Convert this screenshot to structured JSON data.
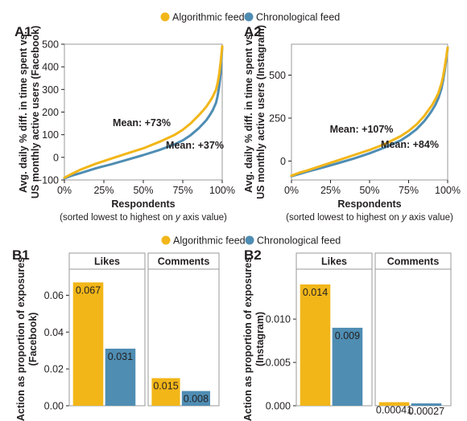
{
  "colors": {
    "algorithmic": "#f2b619",
    "chronological": "#4f8db3",
    "axis": "#231f20",
    "grid": "#9a9a9a"
  },
  "legend_top": {
    "items": [
      {
        "label": "Algorithmic feed",
        "color": "#f2b619"
      },
      {
        "label": "Chronological feed",
        "color": "#4f8db3"
      }
    ]
  },
  "legend_bottom": {
    "items": [
      {
        "label": "Algorithmic feed",
        "color": "#f2b619"
      },
      {
        "label": "Chronological feed",
        "color": "#4f8db3"
      }
    ]
  },
  "chart_data": [
    {
      "id": "A1",
      "panel_label": "A1",
      "type": "line",
      "ylabel_line1": "Avg. daily % diff. in time spent vs.",
      "ylabel_line2": "US monthly active users (Facebook)",
      "xlabel": "Respondents",
      "xlabel_note_pre": "(sorted lowest to highest on ",
      "xlabel_note_em": "y",
      "xlabel_note_post": " axis value)",
      "xlim": [
        0,
        100
      ],
      "ylim": [
        -100,
        500
      ],
      "xticks": [
        0,
        25,
        50,
        75,
        100
      ],
      "xtick_labels": [
        "0%",
        "25%",
        "50%",
        "75%",
        "100%"
      ],
      "yticks": [
        -100,
        0,
        100,
        200,
        300,
        400,
        500
      ],
      "ytick_labels": [
        "−100",
        "0",
        "100",
        "200",
        "300",
        "400",
        "500"
      ],
      "grid": false,
      "series": [
        {
          "key": "algorithmic",
          "x": [
            0,
            5,
            10,
            20,
            30,
            40,
            50,
            60,
            70,
            75,
            80,
            85,
            88,
            90,
            92,
            94,
            96,
            97,
            98,
            99,
            100
          ],
          "y": [
            -90,
            -72,
            -55,
            -28,
            -5,
            18,
            40,
            68,
            100,
            122,
            150,
            185,
            208,
            225,
            245,
            268,
            298,
            325,
            365,
            420,
            490
          ]
        },
        {
          "key": "chronological",
          "x": [
            0,
            5,
            10,
            20,
            30,
            40,
            50,
            60,
            70,
            75,
            80,
            85,
            88,
            90,
            92,
            94,
            96,
            97,
            98,
            99,
            100
          ],
          "y": [
            -93,
            -80,
            -70,
            -48,
            -30,
            -10,
            10,
            32,
            58,
            75,
            98,
            128,
            150,
            165,
            185,
            208,
            240,
            268,
            310,
            370,
            490
          ]
        }
      ],
      "annotations": [
        {
          "text": "Mean: +73%",
          "series": "algorithmic"
        },
        {
          "text": "Mean: +37%",
          "series": "chronological"
        }
      ]
    },
    {
      "id": "A2",
      "panel_label": "A2",
      "type": "line",
      "ylabel_line1": "Avg. daily % diff. in time spent vs.",
      "ylabel_line2": "US monthly active users (Instagram)",
      "xlabel": "Respondents",
      "xlabel_note_pre": "(sorted lowest to highest on ",
      "xlabel_note_em": "y",
      "xlabel_note_post": " axis value)",
      "xlim": [
        0,
        100
      ],
      "ylim": [
        -110,
        680
      ],
      "xticks": [
        0,
        25,
        50,
        75,
        100
      ],
      "xtick_labels": [
        "0%",
        "25%",
        "50%",
        "75%",
        "100%"
      ],
      "yticks": [
        0,
        250,
        500
      ],
      "ytick_labels": [
        "0",
        "250",
        "500"
      ],
      "grid": false,
      "series": [
        {
          "key": "algorithmic",
          "x": [
            0,
            5,
            10,
            20,
            30,
            40,
            50,
            60,
            70,
            75,
            80,
            85,
            88,
            90,
            92,
            94,
            96,
            97,
            98,
            99,
            100
          ],
          "y": [
            -85,
            -68,
            -55,
            -25,
            5,
            35,
            65,
            100,
            145,
            175,
            212,
            262,
            300,
            325,
            358,
            395,
            450,
            490,
            540,
            600,
            660
          ]
        },
        {
          "key": "chronological",
          "x": [
            0,
            5,
            10,
            20,
            30,
            40,
            50,
            60,
            70,
            75,
            80,
            85,
            88,
            90,
            92,
            94,
            96,
            97,
            98,
            99,
            100
          ],
          "y": [
            -88,
            -75,
            -62,
            -38,
            -12,
            15,
            45,
            80,
            120,
            150,
            185,
            232,
            268,
            295,
            325,
            365,
            420,
            465,
            520,
            585,
            660
          ]
        }
      ],
      "annotations": [
        {
          "text": "Mean: +107%",
          "series": "algorithmic"
        },
        {
          "text": "Mean: +84%",
          "series": "chronological"
        }
      ]
    },
    {
      "id": "B1",
      "panel_label": "B1",
      "type": "bar",
      "ylabel_line1": "Action as proportion of exposures",
      "ylabel_line2": "(Facebook)",
      "ylim": [
        0,
        0.072
      ],
      "yticks": [
        0,
        0.02,
        0.04,
        0.06
      ],
      "ytick_labels": [
        "0.00",
        "0.02",
        "0.04",
        "0.06"
      ],
      "facets": [
        {
          "title": "Likes",
          "values": [
            0.067,
            0.031
          ],
          "labels": [
            "0.067",
            "0.031"
          ]
        },
        {
          "title": "Comments",
          "values": [
            0.015,
            0.008
          ],
          "labels": [
            "0.015",
            "0.008"
          ]
        }
      ],
      "series_order": [
        "algorithmic",
        "chronological"
      ]
    },
    {
      "id": "B2",
      "panel_label": "B2",
      "type": "bar",
      "ylabel_line1": "Action as proportion of exposures",
      "ylabel_line2": "(Instagram)",
      "ylim": [
        0,
        0.0153
      ],
      "yticks": [
        0,
        0.005,
        0.01
      ],
      "ytick_labels": [
        "0.000",
        "0.005",
        "0.010"
      ],
      "facets": [
        {
          "title": "Likes",
          "values": [
            0.014,
            0.009
          ],
          "labels": [
            "0.014",
            "0.009"
          ]
        },
        {
          "title": "Comments",
          "values": [
            0.00041,
            0.00027
          ],
          "labels": [
            "0.00041",
            "0.00027"
          ]
        }
      ],
      "series_order": [
        "algorithmic",
        "chronological"
      ]
    }
  ]
}
